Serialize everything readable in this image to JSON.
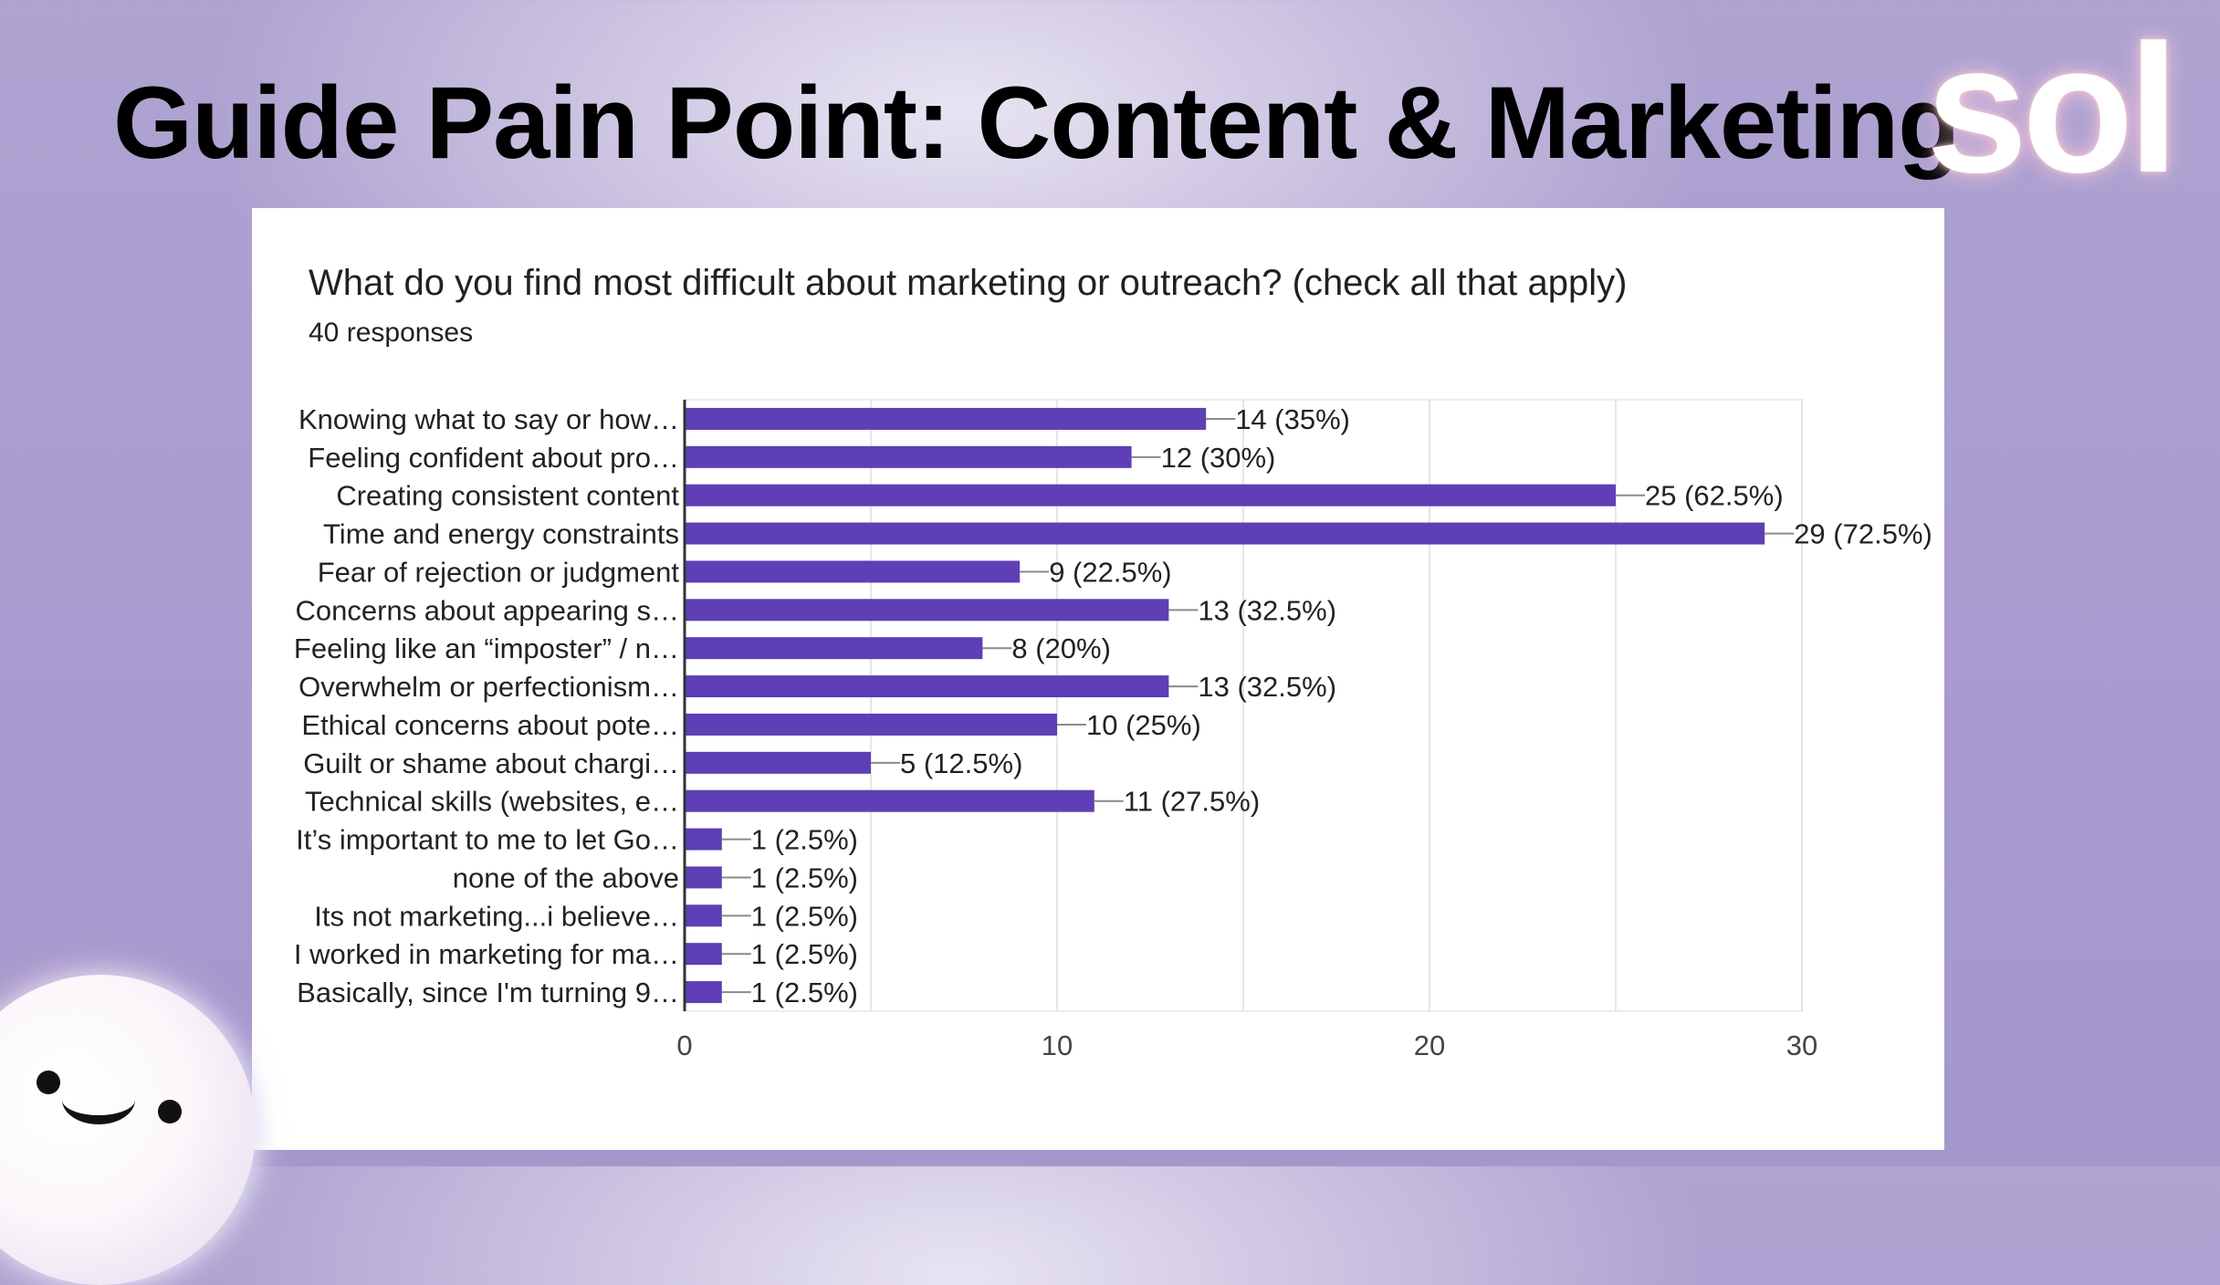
{
  "slide": {
    "title": "Guide Pain Point: Content & Marketing",
    "logo_text": "sol"
  },
  "chart_data": {
    "type": "bar",
    "orientation": "horizontal",
    "title": "What do you find most difficult about marketing or outreach? (check all that apply)",
    "subtitle": "40 responses",
    "categories": [
      "Knowing what to say or how…",
      "Feeling confident about pro…",
      "Creating consistent content",
      "Time and energy constraints",
      "Fear of rejection or judgment",
      "Concerns about appearing s…",
      "Feeling like an “imposter” / n…",
      "Overwhelm or perfectionism…",
      "Ethical concerns about pote…",
      "Guilt or shame about chargi…",
      "Technical skills (websites, e…",
      "It’s important to me to let Go…",
      "none of the above",
      "Its not marketing...i believe…",
      "I worked in marketing for ma…",
      "Basically, since I'm turning 9…"
    ],
    "values": [
      14,
      12,
      25,
      29,
      9,
      13,
      8,
      13,
      10,
      5,
      11,
      1,
      1,
      1,
      1,
      1
    ],
    "data_labels": [
      "14 (35%)",
      "12 (30%)",
      "25 (62.5%)",
      "29 (72.5%)",
      "9 (22.5%)",
      "13 (32.5%)",
      "8 (20%)",
      "13 (32.5%)",
      "10 (25%)",
      "5 (12.5%)",
      "11 (27.5%)",
      "1 (2.5%)",
      "1 (2.5%)",
      "1 (2.5%)",
      "1 (2.5%)",
      "1 (2.5%)"
    ],
    "xlim": [
      0,
      30
    ],
    "x_ticks": [
      0,
      10,
      20,
      30
    ],
    "grid": true,
    "bar_color": "#5e3fb5"
  }
}
